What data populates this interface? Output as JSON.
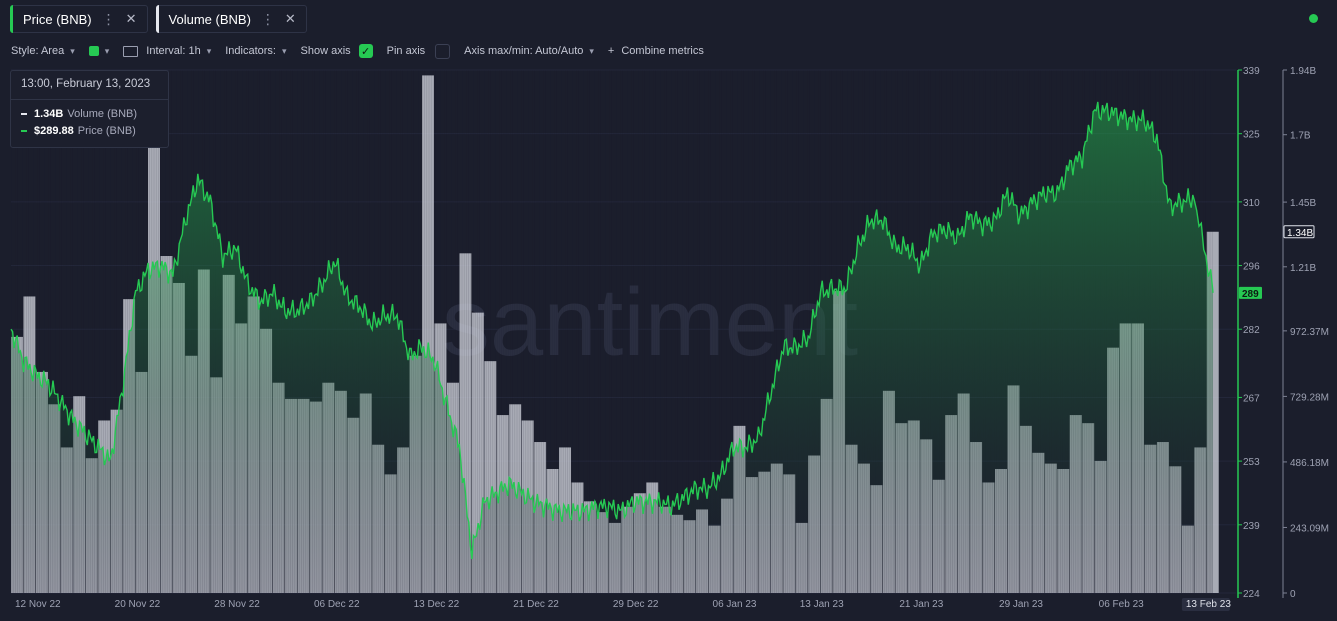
{
  "tabs": [
    {
      "label": "Price (BNB)",
      "color": "#26c953"
    },
    {
      "label": "Volume (BNB)",
      "color": "#e6e8ef"
    }
  ],
  "toolbar": {
    "style_label": "Style: Area",
    "interval_label": "Interval: 1h",
    "indicators_label": "Indicators:",
    "show_axis_label": "Show axis",
    "pin_axis_label": "Pin axis",
    "axis_maxmin_label": "Axis max/min: Auto/Auto",
    "combine_label": "Combine metrics",
    "plus": "+",
    "check_glyph": "✓"
  },
  "tooltip": {
    "date": "13:00, February 13, 2023",
    "volume_value": "1.34B",
    "volume_label": "Volume (BNB)",
    "price_value": "$289.88",
    "price_label": "Price (BNB)"
  },
  "watermark": "santiment",
  "chart_data": {
    "type": "area",
    "x_tick_labels": [
      "12 Nov 22",
      "20 Nov 22",
      "28 Nov 22",
      "06 Dec 22",
      "13 Dec 22",
      "21 Dec 22",
      "29 Dec 22",
      "06 Jan 23",
      "13 Jan 23",
      "21 Jan 23",
      "29 Jan 23",
      "06 Feb 23",
      "13 Feb 23"
    ],
    "price_axis": {
      "ticks": [
        224,
        239,
        253,
        267,
        282,
        296,
        310,
        325,
        339
      ],
      "tick_labels": [
        "224",
        "239",
        "253",
        "267",
        "282",
        "296",
        "310",
        "325",
        "339"
      ],
      "ylim": [
        224,
        339
      ],
      "last_value_label": "289",
      "color": "#26c953"
    },
    "volume_axis": {
      "ticks": [
        0,
        243090000,
        486180000,
        729280000,
        972370000,
        1210000000,
        1450000000,
        1700000000,
        1940000000
      ],
      "tick_labels": [
        "0",
        "243.09M",
        "486.18M",
        "729.28M",
        "972.37M",
        "1.21B",
        "1.45B",
        "1.7B",
        "1.94B"
      ],
      "ylim": [
        0,
        1940000000
      ],
      "last_value_label": "1.34B",
      "color": "#dfe2ea"
    },
    "series": [
      {
        "name": "Price (BNB)",
        "type": "area",
        "color": "#26c953",
        "days": [
          0,
          1,
          2,
          3,
          4,
          5,
          6,
          7,
          8,
          9,
          10,
          11,
          12,
          13,
          14,
          15,
          16,
          17,
          18,
          19,
          20,
          21,
          22,
          23,
          24,
          25,
          26,
          27,
          28,
          29,
          30,
          31,
          32,
          33,
          34,
          35,
          36,
          37,
          38,
          39,
          40,
          41,
          42,
          43,
          44,
          45,
          46,
          47,
          48,
          49,
          50,
          51,
          52,
          53,
          54,
          55,
          56,
          57,
          58,
          59,
          60,
          61,
          62,
          63,
          64,
          65,
          66,
          67,
          68,
          69,
          70,
          71,
          72,
          73,
          74,
          75,
          76,
          77,
          78,
          79,
          80,
          81,
          82,
          83,
          84,
          85,
          86,
          87,
          88,
          89,
          90,
          91,
          92,
          93,
          94,
          95,
          96.5
        ],
        "values": [
          282,
          275,
          272,
          270,
          266,
          262,
          259,
          256,
          253,
          270,
          290,
          295,
          296,
          294,
          306,
          315,
          310,
          298,
          300,
          292,
          288,
          290,
          286,
          286,
          288,
          292,
          297,
          289,
          287,
          283,
          285,
          285,
          276,
          278,
          275,
          265,
          256,
          233,
          244,
          246,
          248,
          246,
          244,
          243,
          242,
          242,
          242,
          243,
          243,
          242,
          244,
          244,
          244,
          243,
          245,
          247,
          247,
          250,
          256,
          256,
          258,
          268,
          278,
          278,
          280,
          290,
          291,
          291,
          300,
          306,
          306,
          300,
          300,
          296,
          303,
          304,
          302,
          307,
          305,
          306,
          312,
          307,
          310,
          312,
          312,
          318,
          320,
          330,
          330,
          329,
          328,
          328,
          324,
          309,
          310,
          311,
          290
        ]
      },
      {
        "name": "Volume (BNB)",
        "type": "bar",
        "color": "#dfe2ea",
        "days": [
          0,
          1,
          2,
          3,
          4,
          5,
          6,
          7,
          8,
          9,
          10,
          11,
          12,
          13,
          14,
          15,
          16,
          17,
          18,
          19,
          20,
          21,
          22,
          23,
          24,
          25,
          26,
          27,
          28,
          29,
          30,
          31,
          32,
          33,
          34,
          35,
          36,
          37,
          38,
          39,
          40,
          41,
          42,
          43,
          44,
          45,
          46,
          47,
          48,
          49,
          50,
          51,
          52,
          53,
          54,
          55,
          56,
          57,
          58,
          59,
          60,
          61,
          62,
          63,
          64,
          65,
          66,
          67,
          68,
          69,
          70,
          71,
          72,
          73,
          74,
          75,
          76,
          77,
          78,
          79,
          80,
          81,
          82,
          83,
          84,
          85,
          86,
          87,
          88,
          89,
          90,
          91,
          92,
          93,
          94,
          95,
          96
        ],
        "values": [
          950000000,
          1100000000,
          820000000,
          700000000,
          540000000,
          730000000,
          500000000,
          640000000,
          680000000,
          1090000000,
          820000000,
          1800000000,
          1250000000,
          1150000000,
          880000000,
          1200000000,
          800000000,
          1180000000,
          1000000000,
          1100000000,
          980000000,
          780000000,
          720000000,
          720000000,
          710000000,
          780000000,
          750000000,
          650000000,
          740000000,
          550000000,
          440000000,
          540000000,
          880000000,
          1920000000,
          1000000000,
          780000000,
          1260000000,
          1040000000,
          860000000,
          660000000,
          700000000,
          640000000,
          560000000,
          460000000,
          540000000,
          410000000,
          340000000,
          300000000,
          260000000,
          320000000,
          370000000,
          410000000,
          320000000,
          290000000,
          270000000,
          310000000,
          250000000,
          350000000,
          620000000,
          430000000,
          450000000,
          480000000,
          440000000,
          260000000,
          510000000,
          720000000,
          1120000000,
          550000000,
          480000000,
          400000000,
          750000000,
          630000000,
          640000000,
          570000000,
          420000000,
          660000000,
          740000000,
          560000000,
          410000000,
          460000000,
          770000000,
          620000000,
          520000000,
          480000000,
          460000000,
          660000000,
          630000000,
          490000000,
          910000000,
          1000000000,
          1000000000,
          550000000,
          560000000,
          470000000,
          250000000,
          540000000,
          1340000000
        ]
      }
    ]
  }
}
